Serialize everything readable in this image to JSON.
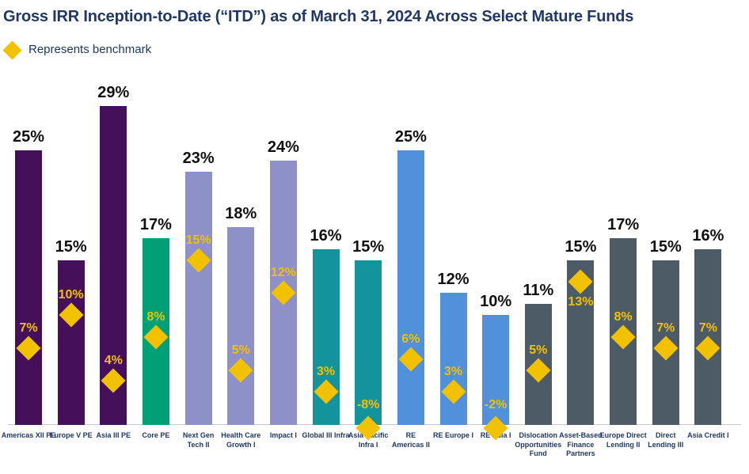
{
  "page": {
    "title": "Gross IRR Inception-to-Date (“ITD”) as of March 31, 2024 Across Select Mature Funds"
  },
  "legend": {
    "icon": "benchmark-diamond-icon",
    "label": "Represents benchmark"
  },
  "colors": {
    "title_navy": "#1F3864",
    "legend_text": "#17375E",
    "benchmark_gold": "#F2C100",
    "value_label": "#111111",
    "category_label": "#1F3864",
    "axis_line": "#C9C9C9",
    "palette": {
      "purple": "#451059",
      "green": "#00A077",
      "lavender": "#8E91C8",
      "teal": "#13949D",
      "blue": "#5190DB",
      "slate": "#4D5B66"
    }
  },
  "chart_data": {
    "type": "bar",
    "title": "Gross IRR Inception-to-Date (“ITD”) as of March 31, 2024 Across Select Mature Funds",
    "xlabel": "",
    "ylabel": "",
    "ylim": [
      0,
      30
    ],
    "grid": false,
    "legend_position": "top-left",
    "marker_series_name": "Represents benchmark",
    "categories": [
      "Americas XII PE",
      "Europe V PE",
      "Asia III PE",
      "Core PE",
      "Next Gen Tech II",
      "Health Care Growth I",
      "Impact I",
      "Global III Infra",
      "Asia Pacific Infra I",
      "RE Americas II",
      "RE Europe I",
      "RE Asia I",
      "Dislocation Opportunities Fund",
      "Asset-Based Finance Partners",
      "Europe Direct Lending II",
      "Direct Lending III",
      "Asia Credit I"
    ],
    "values": [
      25,
      15,
      29,
      17,
      23,
      18,
      24,
      16,
      15,
      25,
      12,
      10,
      11,
      15,
      17,
      15,
      16
    ],
    "benchmarks": [
      7,
      10,
      4,
      8,
      15,
      5,
      12,
      3,
      -8,
      6,
      3,
      -2,
      5,
      13,
      8,
      7,
      7
    ],
    "bars": [
      {
        "category": "Americas XII PE",
        "value": 25,
        "value_label": "25%",
        "benchmark": 7,
        "benchmark_label": "7%",
        "color": "purple"
      },
      {
        "category": "Europe V PE",
        "value": 15,
        "value_label": "15%",
        "benchmark": 10,
        "benchmark_label": "10%",
        "color": "purple"
      },
      {
        "category": "Asia III PE",
        "value": 29,
        "value_label": "29%",
        "benchmark": 4,
        "benchmark_label": "4%",
        "color": "purple"
      },
      {
        "category": "Core PE",
        "value": 17,
        "value_label": "17%",
        "benchmark": 8,
        "benchmark_label": "8%",
        "color": "green"
      },
      {
        "category": "Next Gen\nTech II",
        "value": 23,
        "value_label": "23%",
        "benchmark": 15,
        "benchmark_label": "15%",
        "color": "lavender"
      },
      {
        "category": "Health Care\nGrowth I",
        "value": 18,
        "value_label": "18%",
        "benchmark": 5,
        "benchmark_label": "5%",
        "color": "lavender"
      },
      {
        "category": "Impact I",
        "value": 24,
        "value_label": "24%",
        "benchmark": 12,
        "benchmark_label": "12%",
        "color": "lavender"
      },
      {
        "category": "Global III Infra",
        "value": 16,
        "value_label": "16%",
        "benchmark": 3,
        "benchmark_label": "3%",
        "color": "teal"
      },
      {
        "category": "Asia Pacific\nInfra I",
        "value": 15,
        "value_label": "15%",
        "benchmark": -8,
        "benchmark_label": "-8%",
        "color": "teal"
      },
      {
        "category": "RE\nAmericas II",
        "value": 25,
        "value_label": "25%",
        "benchmark": 6,
        "benchmark_label": "6%",
        "color": "blue"
      },
      {
        "category": "RE Europe I",
        "value": 12,
        "value_label": "12%",
        "benchmark": 3,
        "benchmark_label": "3%",
        "color": "blue"
      },
      {
        "category": "RE Asia I",
        "value": 10,
        "value_label": "10%",
        "benchmark": -2,
        "benchmark_label": "-2%",
        "color": "blue"
      },
      {
        "category": "Dislocation\nOpportunities\nFund",
        "value": 11,
        "value_label": "11%",
        "benchmark": 5,
        "benchmark_label": "5%",
        "color": "slate"
      },
      {
        "category": "Asset-Based\nFinance\nPartners",
        "value": 15,
        "value_label": "15%",
        "benchmark": 13,
        "benchmark_label": "13%",
        "color": "slate"
      },
      {
        "category": "Europe Direct\nLending II",
        "value": 17,
        "value_label": "17%",
        "benchmark": 8,
        "benchmark_label": "8%",
        "color": "slate"
      },
      {
        "category": "Direct\nLending III",
        "value": 15,
        "value_label": "15%",
        "benchmark": 7,
        "benchmark_label": "7%",
        "color": "slate"
      },
      {
        "category": "Asia Credit I",
        "value": 16,
        "value_label": "16%",
        "benchmark": 7,
        "benchmark_label": "7%",
        "color": "slate"
      }
    ]
  }
}
